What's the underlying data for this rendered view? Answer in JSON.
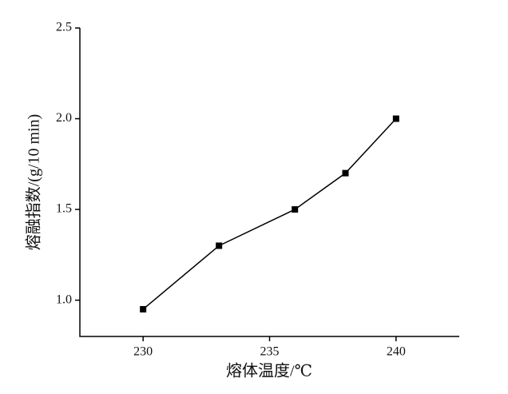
{
  "chart_data": {
    "type": "line",
    "x_label": "熔体温度/℃",
    "y_label": "熔融指数/(g/10 min)",
    "x": [
      230,
      233,
      236,
      238,
      240
    ],
    "series": [
      {
        "name": "熔融指数",
        "color": "#000000",
        "values": [
          0.95,
          1.3,
          1.5,
          1.7,
          2.0
        ]
      }
    ],
    "xlim": [
      227.5,
      242.5
    ],
    "xticks": [
      230,
      235,
      240
    ],
    "ylim": [
      0.8,
      2.5
    ],
    "yticks": [
      {
        "value": 1.0,
        "label": "1.0"
      },
      1.5,
      {
        "value": 2.0,
        "label": "2.0"
      },
      2.5
    ],
    "grid": false,
    "marker": "square"
  }
}
